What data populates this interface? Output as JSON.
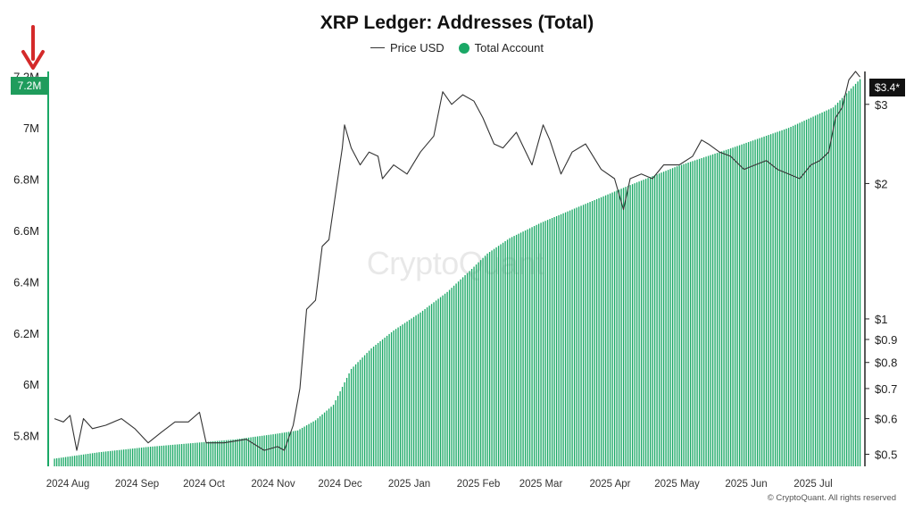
{
  "chart_data": {
    "type": "bar+line",
    "title": "XRP Ledger: Addresses (Total)",
    "legend": [
      "Price USD",
      "Total Account"
    ],
    "legend_position": "top-center",
    "colors": {
      "accounts": "#1aa866",
      "price": "#333333",
      "accent": "#d42a2a"
    },
    "left_axis": {
      "ticks": [
        "5.8M",
        "6M",
        "6.2M",
        "6.4M",
        "6.6M",
        "6.8M",
        "7M",
        "7.2M"
      ],
      "tick_values": [
        5.8,
        6.0,
        6.2,
        6.4,
        6.6,
        6.8,
        7.0,
        7.2
      ],
      "range": [
        5.68,
        7.22
      ]
    },
    "right_axis": {
      "scale": "log",
      "ticks": [
        "$0.5",
        "$0.6",
        "$0.7",
        "$0.8",
        "$0.9",
        "$1",
        "$2",
        "$3"
      ],
      "tick_values": [
        0.5,
        0.6,
        0.7,
        0.8,
        0.9,
        1,
        2,
        3
      ],
      "range": [
        0.47,
        3.55
      ]
    },
    "x_axis": {
      "ticks": [
        "2024 Aug",
        "2024 Sep",
        "2024 Oct",
        "2024 Nov",
        "2024 Dec",
        "2025 Jan",
        "2025 Feb",
        "2025 Mar",
        "2025 Apr",
        "2025 May",
        "2025 Jun",
        "2025 Jul"
      ],
      "tick_dates": [
        "2024-08-01",
        "2024-09-01",
        "2024-10-01",
        "2024-11-01",
        "2024-12-01",
        "2025-01-01",
        "2025-02-01",
        "2025-03-01",
        "2025-04-01",
        "2025-05-01",
        "2025-06-01",
        "2025-07-01"
      ],
      "range": [
        "2024-07-24",
        "2025-07-23"
      ]
    },
    "series": [
      {
        "name": "Total Account",
        "axis": "left",
        "unit": "M",
        "points": [
          [
            "2024-07-26",
            5.71
          ],
          [
            "2024-08-15",
            5.735
          ],
          [
            "2024-09-05",
            5.755
          ],
          [
            "2024-09-25",
            5.77
          ],
          [
            "2024-10-15",
            5.785
          ],
          [
            "2024-11-01",
            5.805
          ],
          [
            "2024-11-12",
            5.82
          ],
          [
            "2024-11-20",
            5.86
          ],
          [
            "2024-11-28",
            5.92
          ],
          [
            "2024-12-06",
            6.06
          ],
          [
            "2024-12-15",
            6.14
          ],
          [
            "2024-12-25",
            6.21
          ],
          [
            "2025-01-06",
            6.28
          ],
          [
            "2025-01-18",
            6.36
          ],
          [
            "2025-01-29",
            6.45
          ],
          [
            "2025-02-05",
            6.51
          ],
          [
            "2025-02-15",
            6.57
          ],
          [
            "2025-03-01",
            6.63
          ],
          [
            "2025-03-20",
            6.7
          ],
          [
            "2025-04-08",
            6.77
          ],
          [
            "2025-05-01",
            6.85
          ],
          [
            "2025-05-25",
            6.92
          ],
          [
            "2025-06-20",
            7.0
          ],
          [
            "2025-07-10",
            7.08
          ],
          [
            "2025-07-22",
            7.19
          ]
        ]
      },
      {
        "name": "Price USD",
        "axis": "right",
        "unit": "USD",
        "points": [
          [
            "2024-07-26",
            0.6
          ],
          [
            "2024-07-30",
            0.59
          ],
          [
            "2024-08-02",
            0.61
          ],
          [
            "2024-08-05",
            0.51
          ],
          [
            "2024-08-08",
            0.6
          ],
          [
            "2024-08-12",
            0.57
          ],
          [
            "2024-08-18",
            0.58
          ],
          [
            "2024-08-25",
            0.6
          ],
          [
            "2024-08-31",
            0.57
          ],
          [
            "2024-09-06",
            0.53
          ],
          [
            "2024-09-12",
            0.56
          ],
          [
            "2024-09-18",
            0.59
          ],
          [
            "2024-09-24",
            0.59
          ],
          [
            "2024-09-29",
            0.62
          ],
          [
            "2024-10-02",
            0.53
          ],
          [
            "2024-10-10",
            0.53
          ],
          [
            "2024-10-20",
            0.54
          ],
          [
            "2024-10-28",
            0.51
          ],
          [
            "2024-11-03",
            0.52
          ],
          [
            "2024-11-06",
            0.51
          ],
          [
            "2024-11-10",
            0.58
          ],
          [
            "2024-11-13",
            0.7
          ],
          [
            "2024-11-16",
            1.05
          ],
          [
            "2024-11-20",
            1.1
          ],
          [
            "2024-11-23",
            1.45
          ],
          [
            "2024-11-26",
            1.5
          ],
          [
            "2024-11-29",
            1.9
          ],
          [
            "2024-12-02",
            2.4
          ],
          [
            "2024-12-03",
            2.7
          ],
          [
            "2024-12-06",
            2.4
          ],
          [
            "2024-12-10",
            2.2
          ],
          [
            "2024-12-14",
            2.35
          ],
          [
            "2024-12-18",
            2.3
          ],
          [
            "2024-12-20",
            2.05
          ],
          [
            "2024-12-25",
            2.2
          ],
          [
            "2024-12-31",
            2.1
          ],
          [
            "2025-01-06",
            2.35
          ],
          [
            "2025-01-12",
            2.55
          ],
          [
            "2025-01-16",
            3.2
          ],
          [
            "2025-01-20",
            3.0
          ],
          [
            "2025-01-25",
            3.15
          ],
          [
            "2025-01-30",
            3.05
          ],
          [
            "2025-02-03",
            2.8
          ],
          [
            "2025-02-08",
            2.45
          ],
          [
            "2025-02-12",
            2.4
          ],
          [
            "2025-02-18",
            2.6
          ],
          [
            "2025-02-25",
            2.2
          ],
          [
            "2025-03-02",
            2.7
          ],
          [
            "2025-03-05",
            2.5
          ],
          [
            "2025-03-10",
            2.1
          ],
          [
            "2025-03-15",
            2.35
          ],
          [
            "2025-03-21",
            2.45
          ],
          [
            "2025-03-28",
            2.15
          ],
          [
            "2025-04-03",
            2.05
          ],
          [
            "2025-04-07",
            1.75
          ],
          [
            "2025-04-10",
            2.05
          ],
          [
            "2025-04-15",
            2.1
          ],
          [
            "2025-04-20",
            2.05
          ],
          [
            "2025-04-25",
            2.2
          ],
          [
            "2025-05-02",
            2.2
          ],
          [
            "2025-05-08",
            2.3
          ],
          [
            "2025-05-12",
            2.5
          ],
          [
            "2025-05-15",
            2.45
          ],
          [
            "2025-05-20",
            2.35
          ],
          [
            "2025-05-25",
            2.3
          ],
          [
            "2025-05-31",
            2.15
          ],
          [
            "2025-06-05",
            2.2
          ],
          [
            "2025-06-10",
            2.25
          ],
          [
            "2025-06-15",
            2.15
          ],
          [
            "2025-06-20",
            2.1
          ],
          [
            "2025-06-25",
            2.05
          ],
          [
            "2025-06-30",
            2.2
          ],
          [
            "2025-07-04",
            2.25
          ],
          [
            "2025-07-08",
            2.35
          ],
          [
            "2025-07-11",
            2.8
          ],
          [
            "2025-07-14",
            2.95
          ],
          [
            "2025-07-17",
            3.4
          ],
          [
            "2025-07-20",
            3.55
          ],
          [
            "2025-07-22",
            3.45
          ]
        ]
      }
    ],
    "latest_labels": {
      "left": "7.2M",
      "right": "$3.4*"
    },
    "watermark": "CryptoQuant",
    "copyright": "© CryptoQuant. All rights reserved"
  }
}
